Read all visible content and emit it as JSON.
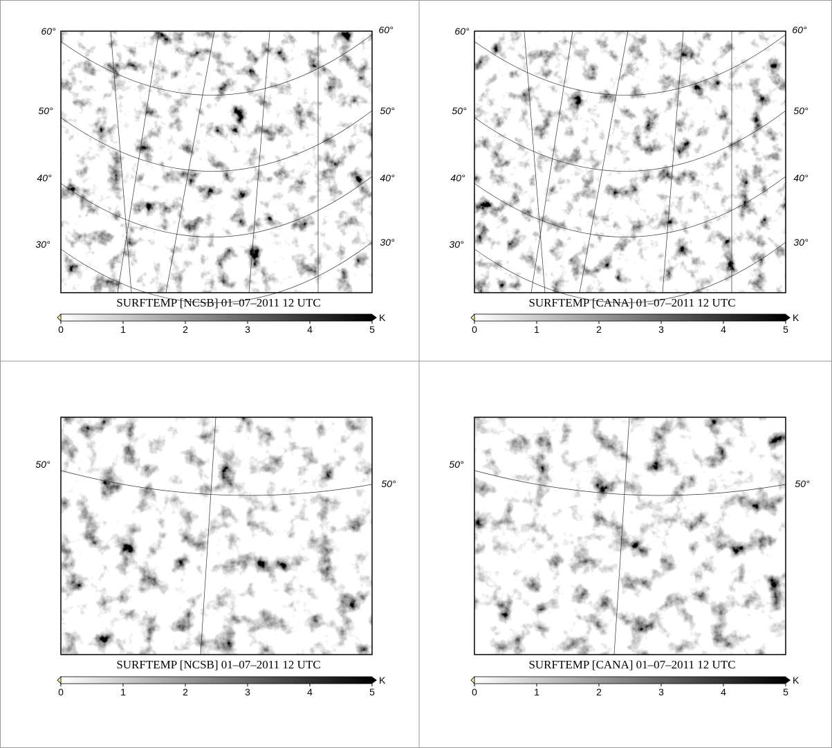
{
  "panels": [
    {
      "title": "SURFTEMP [NCSB] 01–07–2011 12 UTC",
      "unit": "K",
      "colorbar_ticks": [
        0,
        1,
        2,
        3,
        4,
        5
      ],
      "lat_labels_left": [
        "60°",
        "50°",
        "40°",
        "30°"
      ],
      "lat_labels_right": [
        "60°",
        "50°",
        "40°",
        "30°"
      ]
    },
    {
      "title": "SURFTEMP [CANA] 01–07–2011 12 UTC",
      "unit": "K",
      "colorbar_ticks": [
        0,
        1,
        2,
        3,
        4,
        5
      ],
      "lat_labels_left": [
        "60°",
        "50°",
        "40°",
        "30°"
      ],
      "lat_labels_right": [
        "60°",
        "50°",
        "40°",
        "30°"
      ]
    },
    {
      "title": "SURFTEMP [NCSB] 01–07–2011 12 UTC",
      "unit": "K",
      "colorbar_ticks": [
        0,
        1,
        2,
        3,
        4,
        5
      ],
      "lat_labels_left": [
        "50°"
      ],
      "lat_labels_right": [
        "50°"
      ]
    },
    {
      "title": "SURFTEMP [CANA] 01–07–2011 12 UTC",
      "unit": "K",
      "colorbar_ticks": [
        0,
        1,
        2,
        3,
        4,
        5
      ],
      "lat_labels_left": [
        "50°"
      ],
      "lat_labels_right": [
        "50°"
      ]
    }
  ]
}
